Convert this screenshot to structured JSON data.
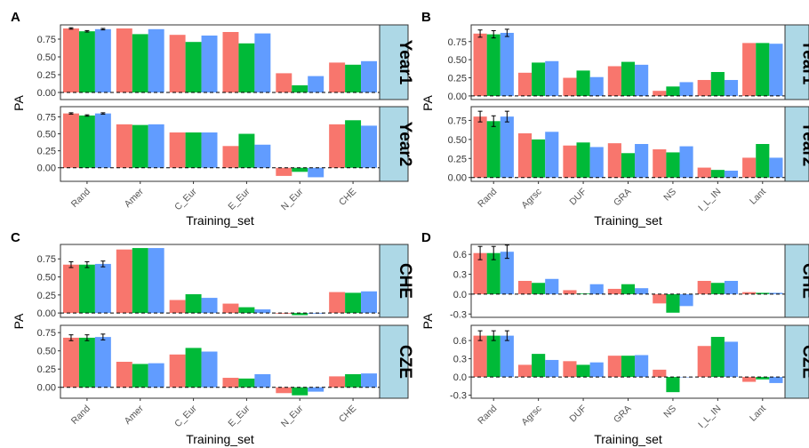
{
  "colors": {
    "series": [
      "#F8766D",
      "#00BA38",
      "#619CFF"
    ],
    "strip_fill": "#ADD8E6"
  },
  "chart_data": [
    {
      "type": "bar",
      "panel_label": "A",
      "xlabel": "Training_set",
      "ylabel": "PA",
      "categories": [
        "Rand",
        "Amer",
        "C_Eur",
        "E_Eur",
        "N_Eur",
        "CHE"
      ],
      "facets": [
        {
          "strip": "Year1",
          "ylim": [
            -0.1,
            0.95
          ],
          "yticks": [
            0,
            0.25,
            0.5,
            0.75
          ],
          "yticklabels": [
            "0.00",
            "0.25",
            "0.50",
            "0.75"
          ],
          "hline": 0,
          "series": [
            {
              "values": [
                0.9,
                0.9,
                0.81,
                0.85,
                0.27,
                0.42
              ],
              "errors": [
                0.01,
                0,
                0,
                0,
                0,
                0
              ]
            },
            {
              "values": [
                0.86,
                0.82,
                0.71,
                0.69,
                0.1,
                0.39
              ],
              "errors": [
                0.01,
                0,
                0,
                0,
                0,
                0
              ]
            },
            {
              "values": [
                0.89,
                0.89,
                0.8,
                0.83,
                0.23,
                0.44
              ],
              "errors": [
                0.01,
                0,
                0,
                0,
                0,
                0
              ]
            }
          ]
        },
        {
          "strip": "Year2",
          "ylim": [
            -0.2,
            0.9
          ],
          "yticks": [
            0,
            0.25,
            0.5,
            0.75
          ],
          "yticklabels": [
            "0.00",
            "0.25",
            "0.50",
            "0.75"
          ],
          "hline": 0,
          "series": [
            {
              "values": [
                0.8,
                0.64,
                0.52,
                0.32,
                -0.12,
                0.64
              ],
              "errors": [
                0.01,
                0,
                0,
                0,
                0,
                0
              ]
            },
            {
              "values": [
                0.77,
                0.63,
                0.52,
                0.5,
                -0.06,
                0.7
              ],
              "errors": [
                0.01,
                0,
                0,
                0,
                0,
                0
              ]
            },
            {
              "values": [
                0.8,
                0.64,
                0.52,
                0.34,
                -0.14,
                0.62
              ],
              "errors": [
                0.01,
                0,
                0,
                0,
                0,
                0
              ]
            }
          ]
        }
      ]
    },
    {
      "type": "bar",
      "panel_label": "B",
      "xlabel": "Training_set",
      "ylabel": "PA",
      "categories": [
        "Rand",
        "Agrsc",
        "DUF",
        "GRA",
        "NS",
        "I_L_IN",
        "Lant"
      ],
      "facets": [
        {
          "strip": "Year1",
          "ylim": [
            -0.05,
            0.98
          ],
          "yticks": [
            0,
            0.25,
            0.5,
            0.75
          ],
          "yticklabels": [
            "0.00",
            "0.25",
            "0.50",
            "0.75"
          ],
          "hline": 0,
          "series": [
            {
              "values": [
                0.86,
                0.32,
                0.25,
                0.41,
                0.07,
                0.22,
                0.73
              ],
              "errors": [
                0.05,
                0,
                0,
                0,
                0,
                0,
                0
              ]
            },
            {
              "values": [
                0.85,
                0.46,
                0.35,
                0.47,
                0.13,
                0.33,
                0.73
              ],
              "errors": [
                0.05,
                0,
                0,
                0,
                0,
                0,
                0
              ]
            },
            {
              "values": [
                0.87,
                0.48,
                0.26,
                0.43,
                0.19,
                0.22,
                0.72
              ],
              "errors": [
                0.05,
                0,
                0,
                0,
                0,
                0,
                0
              ]
            }
          ]
        },
        {
          "strip": "Year2",
          "ylim": [
            -0.05,
            0.93
          ],
          "yticks": [
            0,
            0.25,
            0.5,
            0.75
          ],
          "yticklabels": [
            "0.00",
            "0.25",
            "0.50",
            "0.75"
          ],
          "hline": 0,
          "series": [
            {
              "values": [
                0.8,
                0.58,
                0.42,
                0.45,
                0.37,
                0.13,
                0.26
              ],
              "errors": [
                0.07,
                0,
                0,
                0,
                0,
                0,
                0
              ]
            },
            {
              "values": [
                0.74,
                0.5,
                0.46,
                0.32,
                0.33,
                0.1,
                0.44
              ],
              "errors": [
                0.07,
                0,
                0,
                0,
                0,
                0,
                0
              ]
            },
            {
              "values": [
                0.8,
                0.6,
                0.4,
                0.44,
                0.41,
                0.09,
                0.26
              ],
              "errors": [
                0.07,
                0,
                0,
                0,
                0,
                0,
                0
              ]
            }
          ]
        }
      ]
    },
    {
      "type": "bar",
      "panel_label": "C",
      "xlabel": "Training_set",
      "ylabel": "PA",
      "categories": [
        "Rand",
        "Amer",
        "C_Eur",
        "E_Eur",
        "N_Eur",
        "CHE"
      ],
      "facets": [
        {
          "strip": "CHE",
          "ylim": [
            -0.06,
            0.95
          ],
          "yticks": [
            0,
            0.25,
            0.5,
            0.75
          ],
          "yticklabels": [
            "0.00",
            "0.25",
            "0.50",
            "0.75"
          ],
          "hline": 0,
          "series": [
            {
              "values": [
                0.67,
                0.88,
                0.18,
                0.13,
                -0.01,
                0.29
              ],
              "errors": [
                0.04,
                0,
                0,
                0,
                0,
                0
              ]
            },
            {
              "values": [
                0.67,
                0.9,
                0.26,
                0.08,
                -0.03,
                0.28
              ],
              "errors": [
                0.04,
                0,
                0,
                0,
                0,
                0
              ]
            },
            {
              "values": [
                0.68,
                0.9,
                0.21,
                0.05,
                -0.01,
                0.3
              ],
              "errors": [
                0.04,
                0,
                0,
                0,
                0,
                0
              ]
            }
          ]
        },
        {
          "strip": "CZE",
          "ylim": [
            -0.15,
            0.85
          ],
          "yticks": [
            0,
            0.25,
            0.5,
            0.75
          ],
          "yticklabels": [
            "0.00",
            "0.25",
            "0.50",
            "0.75"
          ],
          "hline": 0,
          "series": [
            {
              "values": [
                0.68,
                0.35,
                0.45,
                0.13,
                -0.08,
                0.15
              ],
              "errors": [
                0.04,
                0,
                0,
                0,
                0,
                0
              ]
            },
            {
              "values": [
                0.68,
                0.32,
                0.54,
                0.12,
                -0.11,
                0.18
              ],
              "errors": [
                0.04,
                0,
                0,
                0,
                0,
                0
              ]
            },
            {
              "values": [
                0.69,
                0.33,
                0.49,
                0.18,
                -0.06,
                0.19
              ],
              "errors": [
                0.04,
                0,
                0,
                0,
                0,
                0
              ]
            }
          ]
        }
      ]
    },
    {
      "type": "bar",
      "panel_label": "D",
      "xlabel": "Training_set",
      "ylabel": "PA",
      "categories": [
        "Rand",
        "Agrsc",
        "DUF",
        "GRA",
        "NS",
        "I_L_IN",
        "Lant"
      ],
      "facets": [
        {
          "strip": "CHE",
          "ylim": [
            -0.35,
            0.75
          ],
          "yticks": [
            -0.3,
            0,
            0.3,
            0.6
          ],
          "yticklabels": [
            "-0.3",
            "0.0",
            "0.3",
            "0.6"
          ],
          "hline": 0,
          "series": [
            {
              "values": [
                0.62,
                0.2,
                0.06,
                0.08,
                -0.14,
                0.2,
                0.03
              ],
              "errors": [
                0.1,
                0,
                0,
                0,
                0,
                0,
                0
              ]
            },
            {
              "values": [
                0.62,
                0.17,
                0.01,
                0.15,
                -0.28,
                0.17,
                0.02
              ],
              "errors": [
                0.1,
                0,
                0,
                0,
                0,
                0,
                0
              ]
            },
            {
              "values": [
                0.64,
                0.23,
                0.15,
                0.09,
                -0.18,
                0.2,
                0.02
              ],
              "errors": [
                0.1,
                0,
                0,
                0,
                0,
                0,
                0
              ]
            }
          ]
        },
        {
          "strip": "CZE",
          "ylim": [
            -0.35,
            0.85
          ],
          "yticks": [
            -0.3,
            0,
            0.3,
            0.6
          ],
          "yticklabels": [
            "-0.3",
            "0.0",
            "0.3",
            "0.6"
          ],
          "hline": 0,
          "series": [
            {
              "values": [
                0.68,
                0.2,
                0.26,
                0.35,
                0.12,
                0.51,
                -0.08
              ],
              "errors": [
                0.08,
                0,
                0,
                0,
                0,
                0,
                0
              ]
            },
            {
              "values": [
                0.68,
                0.38,
                0.2,
                0.35,
                -0.25,
                0.66,
                -0.04
              ],
              "errors": [
                0.08,
                0,
                0,
                0,
                0,
                0,
                0
              ]
            },
            {
              "values": [
                0.68,
                0.28,
                0.24,
                0.36,
                0,
                0.58,
                -0.1
              ],
              "errors": [
                0.08,
                0,
                0,
                0,
                0,
                0,
                0
              ]
            }
          ]
        }
      ]
    }
  ]
}
